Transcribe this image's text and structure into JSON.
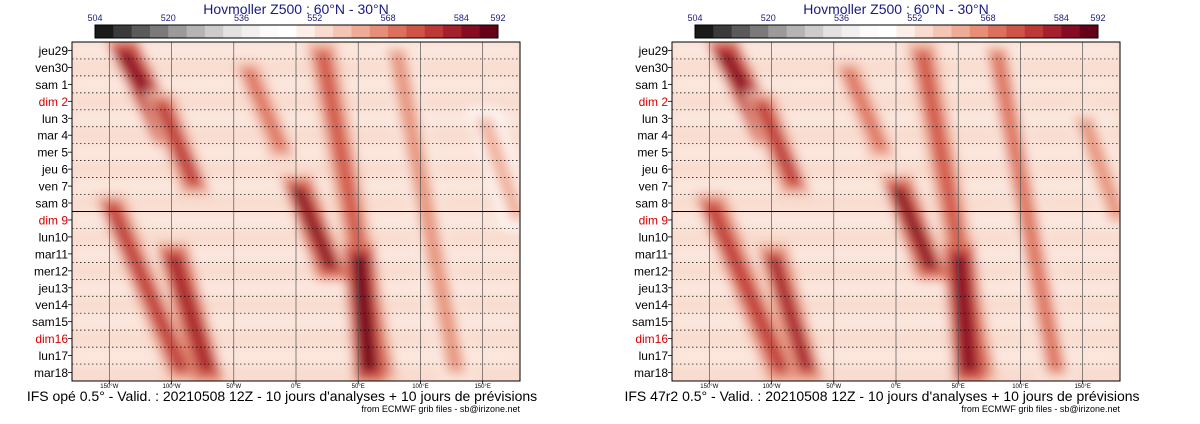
{
  "colors": {
    "title": "#1a1a80",
    "weekend": "#d40000",
    "text": "#000000",
    "grid": "#000000",
    "colorbar": [
      "#1a1a1a",
      "#3a3a3a",
      "#5a5a5a",
      "#7a7a7a",
      "#9a9a9a",
      "#b4b4b4",
      "#cccccc",
      "#e2e2e2",
      "#f0f0f0",
      "#fbfbfb",
      "#ffffff",
      "#fdeee8",
      "#f9dccf",
      "#f4c5b3",
      "#eeab95",
      "#e68e77",
      "#db705c",
      "#cf5346",
      "#bd3837",
      "#a3202c",
      "#850c23",
      "#660019"
    ]
  },
  "panels": [
    {
      "title": "Hovmoller Z500 : 60°N - 30°N",
      "footer": "IFS opé 0.5° - Valid. : 20210508 12Z - 10 jours d'analyses + 10 jours de prévisions",
      "credit": "from ECMWF grib files - sb@irizone.net",
      "chart_data": {
        "type": "heatmap",
        "title": "Hovmoller Z500 : 60°N - 30°N",
        "colorbar_ticks": [
          "504",
          "520",
          "536",
          "552",
          "568",
          "584",
          "592"
        ],
        "colorbar_range": [
          504,
          592
        ],
        "x_range": [
          -180,
          180
        ],
        "x_ticks": [
          -150,
          -100,
          -50,
          0,
          50,
          100,
          150
        ],
        "x_tick_labels": [
          "150°W",
          "100°W",
          "50°W",
          "0°E",
          "50°E",
          "100°E",
          "150°E"
        ],
        "y_labels": [
          "jeu29",
          "ven30",
          "sam 1",
          "dim 2",
          "lun 3",
          "mar 4",
          "mer 5",
          "jeu 6",
          "ven 7",
          "sam 8",
          "dim 9",
          "lun10",
          "mar11",
          "mer12",
          "jeu13",
          "ven14",
          "sam15",
          "dim16",
          "lun17",
          "mar18"
        ],
        "weekend_labels": [
          "dim 2",
          "dim 9",
          "dim16"
        ],
        "analysis_end_label": "dim 9",
        "ridges": [
          {
            "start_day": 0,
            "end_day": 5,
            "lon0": -140,
            "lon1": -100,
            "level": 588
          },
          {
            "start_day": 3,
            "end_day": 8,
            "lon0": -110,
            "lon1": -80,
            "level": 578
          },
          {
            "start_day": 9,
            "end_day": 19,
            "lon0": -150,
            "lon1": -90,
            "level": 578
          },
          {
            "start_day": 12,
            "end_day": 19,
            "lon0": -100,
            "lon1": -70,
            "level": 584
          },
          {
            "start_day": 8,
            "end_day": 13,
            "lon0": 0,
            "lon1": 30,
            "level": 586
          },
          {
            "start_day": 0,
            "end_day": 19,
            "lon0": 20,
            "lon1": 70,
            "level": 576
          },
          {
            "start_day": 12,
            "end_day": 19,
            "lon0": 50,
            "lon1": 60,
            "level": 590
          },
          {
            "start_day": 0,
            "end_day": 19,
            "lon0": 80,
            "lon1": 130,
            "level": 568
          },
          {
            "start_day": 4,
            "end_day": 10,
            "lon0": 150,
            "lon1": 180,
            "level": 564
          },
          {
            "start_day": 1,
            "end_day": 6,
            "lon0": -40,
            "lon1": -10,
            "level": 572
          }
        ]
      }
    },
    {
      "title": "Hovmoller Z500 : 60°N - 30°N",
      "footer": "IFS 47r2 0.5° - Valid. : 20210508 12Z - 10 jours d'analyses + 10 jours de prévisions",
      "credit": "from ECMWF grib files - sb@irizone.net",
      "chart_data": {
        "type": "heatmap",
        "title": "Hovmoller Z500 : 60°N - 30°N",
        "colorbar_ticks": [
          "504",
          "520",
          "536",
          "552",
          "568",
          "584",
          "592"
        ],
        "colorbar_range": [
          504,
          592
        ],
        "x_range": [
          -180,
          180
        ],
        "x_ticks": [
          -150,
          -100,
          -50,
          0,
          50,
          100,
          150
        ],
        "x_tick_labels": [
          "150°W",
          "100°W",
          "50°W",
          "0°E",
          "50°E",
          "100°E",
          "150°E"
        ],
        "y_labels": [
          "jeu29",
          "ven30",
          "sam 1",
          "dim 2",
          "lun 3",
          "mar 4",
          "mer 5",
          "jeu 6",
          "ven 7",
          "sam 8",
          "dim 9",
          "lun10",
          "mar11",
          "mer12",
          "jeu13",
          "ven14",
          "sam15",
          "dim16",
          "lun17",
          "mar18"
        ],
        "weekend_labels": [
          "dim 2",
          "dim 9",
          "dim16"
        ],
        "analysis_end_label": "dim 9",
        "ridges": [
          {
            "start_day": 0,
            "end_day": 5,
            "lon0": -140,
            "lon1": -100,
            "level": 588
          },
          {
            "start_day": 3,
            "end_day": 8,
            "lon0": -110,
            "lon1": -80,
            "level": 578
          },
          {
            "start_day": 9,
            "end_day": 19,
            "lon0": -150,
            "lon1": -90,
            "level": 580
          },
          {
            "start_day": 12,
            "end_day": 19,
            "lon0": -100,
            "lon1": -70,
            "level": 582
          },
          {
            "start_day": 8,
            "end_day": 13,
            "lon0": 0,
            "lon1": 30,
            "level": 586
          },
          {
            "start_day": 0,
            "end_day": 19,
            "lon0": 20,
            "lon1": 70,
            "level": 576
          },
          {
            "start_day": 12,
            "end_day": 19,
            "lon0": 50,
            "lon1": 60,
            "level": 588
          },
          {
            "start_day": 0,
            "end_day": 19,
            "lon0": 80,
            "lon1": 130,
            "level": 570
          },
          {
            "start_day": 4,
            "end_day": 10,
            "lon0": 150,
            "lon1": 180,
            "level": 566
          },
          {
            "start_day": 1,
            "end_day": 6,
            "lon0": -40,
            "lon1": -10,
            "level": 572
          }
        ]
      }
    }
  ]
}
